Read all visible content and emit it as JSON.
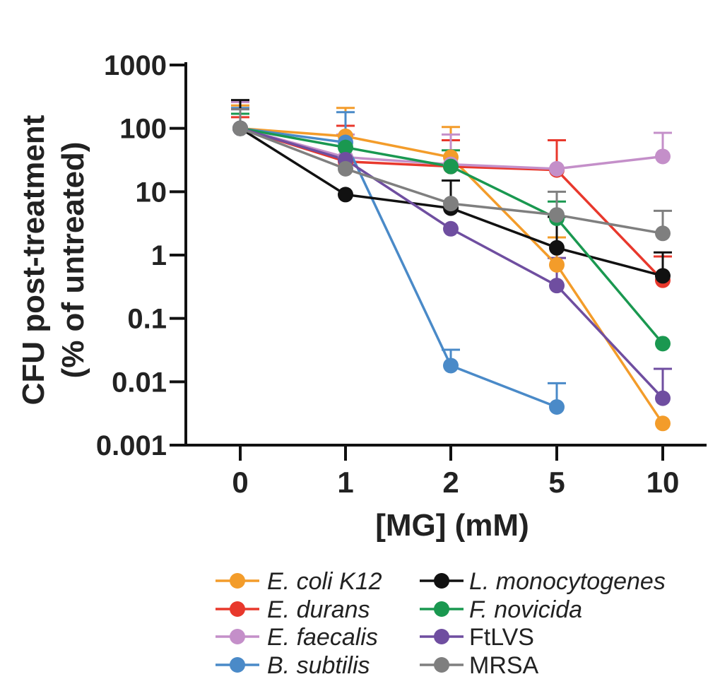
{
  "chart_data": {
    "type": "line",
    "y_scale": "log",
    "ylim": [
      0.001,
      1000
    ],
    "xlabel": "[MG] (mM)",
    "ylabel_line1": "CFU post-treatment",
    "ylabel_line2": "(% of untreated)",
    "categories": [
      "0",
      "1",
      "2",
      "5",
      "10"
    ],
    "y_ticks": [
      {
        "value": 1000,
        "label": "1000"
      },
      {
        "value": 100,
        "label": "100"
      },
      {
        "value": 10,
        "label": "10"
      },
      {
        "value": 1,
        "label": "1"
      },
      {
        "value": 0.1,
        "label": "0.1"
      },
      {
        "value": 0.01,
        "label": "0.01"
      },
      {
        "value": 0.001,
        "label": "0.001"
      }
    ],
    "legend_position": "bottom",
    "series": [
      {
        "name": "E. coli K12",
        "italic": true,
        "color": "#f39c2a",
        "values": [
          100,
          75,
          35,
          0.7,
          0.0022
        ],
        "err_upper": [
          230,
          210,
          105,
          1.9,
          null
        ]
      },
      {
        "name": "E. durans",
        "italic": true,
        "color": "#e8382c",
        "values": [
          100,
          30,
          25,
          22,
          0.4
        ],
        "err_upper": [
          150,
          110,
          65,
          65,
          0.95
        ]
      },
      {
        "name": "E. faecalis",
        "italic": true,
        "color": "#c48fc9",
        "values": [
          100,
          35,
          27,
          23,
          36
        ],
        "err_upper": [
          260,
          80,
          80,
          null,
          85
        ]
      },
      {
        "name": "B. subtilis",
        "italic": true,
        "color": "#4a8ac8",
        "values": [
          100,
          60,
          0.018,
          0.004,
          null
        ],
        "err_upper": [
          210,
          180,
          0.032,
          0.0095,
          null
        ]
      },
      {
        "name": "L. monocytogenes",
        "italic": true,
        "color": "#111111",
        "values": [
          100,
          9,
          5.5,
          1.3,
          0.47
        ],
        "err_upper": [
          280,
          null,
          15,
          4,
          1.1
        ]
      },
      {
        "name": "F. novicida",
        "italic": true,
        "color": "#1a9850",
        "values": [
          100,
          50,
          25,
          3.8,
          0.04
        ],
        "err_upper": [
          170,
          null,
          45,
          7,
          null
        ]
      },
      {
        "name": "FtLVS",
        "italic": false,
        "color": "#6f4ea0",
        "values": [
          100,
          32,
          2.6,
          0.33,
          0.0055
        ],
        "err_upper": [
          200,
          null,
          null,
          0.9,
          0.016
        ]
      },
      {
        "name": "MRSA",
        "italic": false,
        "color": "#7f7f7f",
        "values": [
          100,
          23,
          6.5,
          4.3,
          2.2
        ],
        "err_upper": [
          200,
          null,
          null,
          10,
          5
        ]
      }
    ]
  }
}
